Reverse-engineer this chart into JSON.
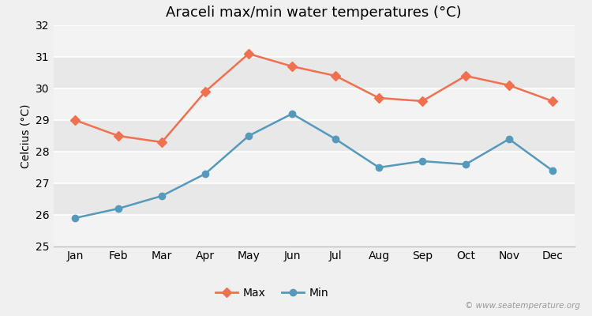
{
  "title": "Araceli max/min water temperatures (°C)",
  "ylabel": "Celcius (°C)",
  "months": [
    "Jan",
    "Feb",
    "Mar",
    "Apr",
    "May",
    "Jun",
    "Jul",
    "Aug",
    "Sep",
    "Oct",
    "Nov",
    "Dec"
  ],
  "max_temps": [
    29.0,
    28.5,
    28.3,
    29.9,
    31.1,
    30.7,
    30.4,
    29.7,
    29.6,
    30.4,
    30.1,
    29.6
  ],
  "min_temps": [
    25.9,
    26.2,
    26.6,
    27.3,
    28.5,
    29.2,
    28.4,
    27.5,
    27.7,
    27.6,
    28.4,
    27.4
  ],
  "max_color": "#f07050",
  "min_color": "#5599bb",
  "bg_color": "#f0f0f0",
  "plot_bg_color": "#e8e8e8",
  "ylim": [
    25,
    32
  ],
  "yticks": [
    25,
    26,
    27,
    28,
    29,
    30,
    31,
    32
  ],
  "watermark": "© www.seatemperature.org",
  "legend_max": "Max",
  "legend_min": "Min",
  "grid_colors": [
    "#ffffff",
    "#e0e0e0"
  ],
  "title_fontsize": 13,
  "axis_fontsize": 10,
  "tick_fontsize": 10
}
